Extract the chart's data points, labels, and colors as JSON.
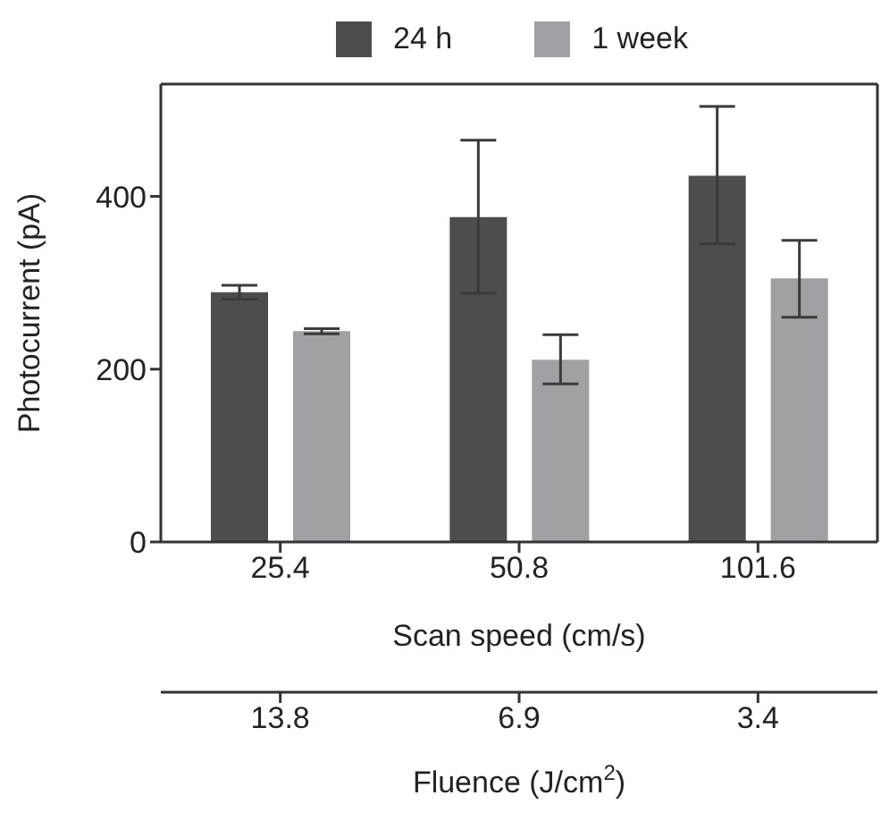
{
  "chart_data": {
    "type": "bar",
    "xlabel": "Scan speed (cm/s)",
    "ylabel": "Photocurrent (pA)",
    "x2label": "Fluence (J/cm$^{2}$)",
    "categories": [
      "25.4",
      "50.8",
      "101.6"
    ],
    "annotations": [
      "13.8",
      "6.9",
      "3.4"
    ],
    "series": [
      {
        "name": "24 h",
        "color": "#4d4d4f",
        "values": [
          289,
          376,
          424
        ],
        "errors": [
          [
            281,
            297
          ],
          [
            288,
            465
          ],
          [
            345,
            504
          ]
        ]
      },
      {
        "name": "1 week",
        "color": "#a0a1a4",
        "values": [
          244,
          211,
          305
        ],
        "errors": [
          [
            241,
            247
          ],
          [
            183,
            240
          ],
          [
            260,
            349
          ]
        ]
      }
    ],
    "ylim": [
      0,
      530
    ],
    "yticks": [
      0,
      200,
      400
    ],
    "grid": false,
    "legend": "top"
  }
}
